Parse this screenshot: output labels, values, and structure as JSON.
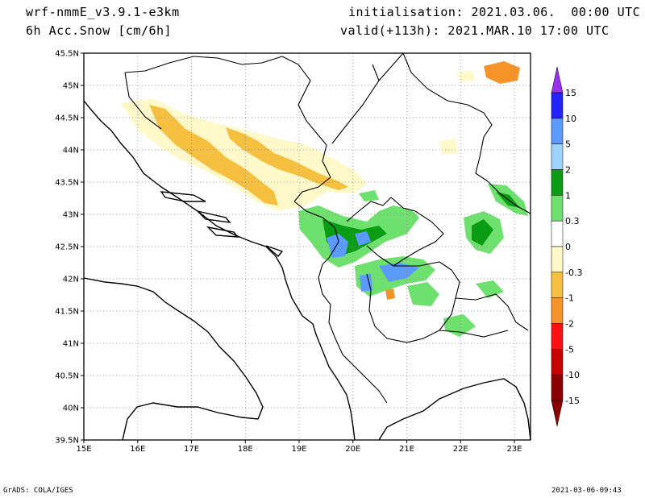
{
  "header": {
    "model": "wrf-nmmE_v3.9.1-e3km",
    "field": "6h Acc.Snow [cm/6h]",
    "init": "initialisation: 2021.03.06.  00:00 UTC",
    "valid": "valid(+113h): 2021.MAR.10 17:00 UTC"
  },
  "footer": {
    "credit": "GrADS: COLA/IGES",
    "timestamp": "2021-03-06-09:43"
  },
  "map": {
    "lat_labels": [
      "45.5N",
      "45N",
      "44.5N",
      "44N",
      "43.5N",
      "43N",
      "42.5N",
      "42N",
      "41.5N",
      "41N",
      "40.5N",
      "40N",
      "39.5N"
    ],
    "lon_labels": [
      "15E",
      "16E",
      "17E",
      "18E",
      "19E",
      "20E",
      "21E",
      "22E",
      "23E"
    ],
    "lat_range": [
      39.5,
      45.5
    ],
    "lon_range": [
      15,
      23.3
    ],
    "grid": "dotted"
  },
  "colorbar": {
    "labels": [
      "15",
      "10",
      "5",
      "2",
      "1",
      "0.3",
      "0",
      "-0.3",
      "-1",
      "-2",
      "-5",
      "-10",
      "-15"
    ],
    "colors": [
      "#9a2ff0",
      "#2323ff",
      "#5b9bff",
      "#a0d2ff",
      "#0a9c14",
      "#6ee06e",
      "#ffffff",
      "#fff8c8",
      "#f5c040",
      "#f59228",
      "#ff1010",
      "#c80000",
      "#8b0000"
    ]
  }
}
